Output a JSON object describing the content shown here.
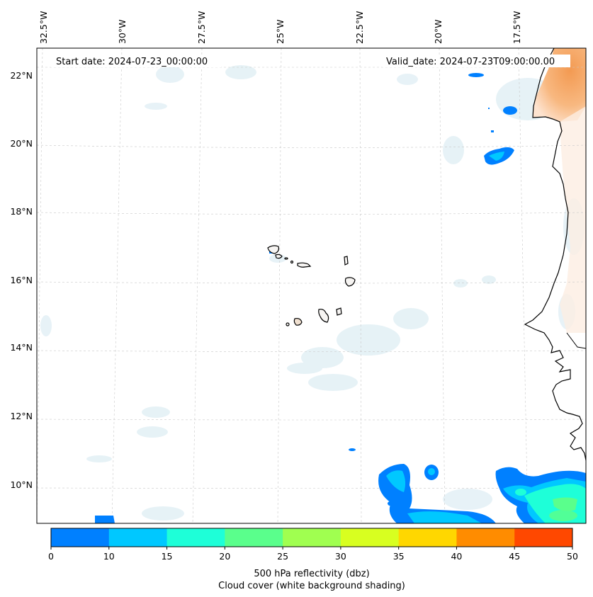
{
  "start_date_label": "Start date: 2024-07-23_00:00:00",
  "valid_date_label": "Valid_date: 2024-07-23T09:00:00.00",
  "longitude_labels": [
    "32.5°W",
    "30°W",
    "27.5°W",
    "25°W",
    "22.5°W",
    "20°W",
    "17.5°W"
  ],
  "latitude_labels": [
    "22°N",
    "20°N",
    "18°N",
    "16°N",
    "14°N",
    "12°N",
    "10°N"
  ],
  "colorbar": {
    "label_line1": "500 hPa reflectivity (dbz)",
    "label_line2": "Cloud cover (white background shading)",
    "ticks": [
      "0",
      "10",
      "15",
      "20",
      "25",
      "30",
      "35",
      "40",
      "45",
      "50"
    ],
    "colors": [
      "#0080ff",
      "#00c8ff",
      "#1effd8",
      "#5aff8c",
      "#a0ff50",
      "#d8ff20",
      "#ffd700",
      "#ff8c00",
      "#ff4800"
    ]
  },
  "colors": {
    "land_shading": "#f7a35c",
    "cloud_shading": "#e4f1f6",
    "coastline": "#000000"
  }
}
